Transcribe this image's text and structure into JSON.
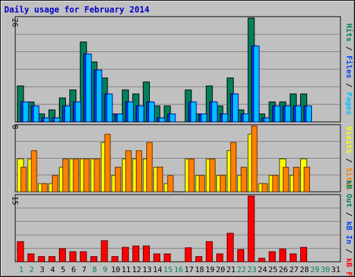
{
  "title": "Daily usage for February 2014",
  "colors": {
    "background": "#c0c0c0",
    "grid": "#808080",
    "hits": "#00805c",
    "files": "#0040ff",
    "pages": "#00c0ff",
    "visits": "#ffff00",
    "sites": "#ff8000",
    "kbin": "#0040ff",
    "kbout": "#00805c",
    "kbf": "#ff0000",
    "weekday": "#000000",
    "weekend": "#00805c",
    "title": "#0000c8"
  },
  "chart_data": [
    {
      "type": "bar",
      "panel": "hits-files-pages",
      "y_max_label": "26",
      "ylim": [
        0,
        26
      ],
      "side_labels": [
        {
          "text": "Pages",
          "color": "#00c0ff"
        },
        {
          "text": "Files",
          "color": "#0040ff"
        },
        {
          "text": "Hits",
          "color": "#00805c"
        }
      ],
      "categories": [
        "1",
        "2",
        "3",
        "4",
        "5",
        "6",
        "7",
        "8",
        "9",
        "10",
        "11",
        "12",
        "13",
        "14",
        "15",
        "16",
        "17",
        "18",
        "19",
        "20",
        "21",
        "22",
        "23",
        "24",
        "25",
        "26",
        "27",
        "28",
        "29",
        "30",
        "31"
      ],
      "series": [
        {
          "name": "Hits",
          "values": [
            9,
            5,
            2,
            3,
            6,
            8,
            20,
            15,
            11,
            2,
            8,
            7,
            10,
            4,
            4,
            0,
            8,
            2,
            9,
            4,
            11,
            3,
            26,
            2,
            5,
            5,
            7,
            7,
            0,
            0,
            0
          ]
        },
        {
          "name": "Files",
          "values": [
            5,
            4,
            1,
            1,
            4,
            5,
            17,
            13,
            7,
            2,
            5,
            4,
            5,
            1,
            2,
            0,
            5,
            2,
            5,
            2,
            7,
            2,
            19,
            1,
            4,
            4,
            4,
            4,
            0,
            0,
            0
          ]
        },
        {
          "name": "Pages",
          "values": [
            5,
            4,
            1,
            1,
            4,
            5,
            17,
            13,
            7,
            2,
            5,
            4,
            5,
            1,
            2,
            0,
            5,
            2,
            5,
            2,
            7,
            2,
            19,
            1,
            4,
            4,
            4,
            4,
            0,
            0,
            0
          ]
        }
      ]
    },
    {
      "type": "bar",
      "panel": "visits-sites",
      "y_max_label": "8",
      "ylim": [
        0,
        8
      ],
      "side_labels": [
        {
          "text": "Sites",
          "color": "#ff8000"
        },
        {
          "text": "Visits",
          "color": "#ffff00"
        }
      ],
      "categories": [
        "1",
        "2",
        "3",
        "4",
        "5",
        "6",
        "7",
        "8",
        "9",
        "10",
        "11",
        "12",
        "13",
        "14",
        "15",
        "16",
        "17",
        "18",
        "19",
        "20",
        "21",
        "22",
        "23",
        "24",
        "25",
        "26",
        "27",
        "28",
        "29",
        "30",
        "31"
      ],
      "series": [
        {
          "name": "Visits",
          "values": [
            4,
            4,
            1,
            1,
            3,
            4,
            4,
            4,
            6,
            2,
            4,
            4,
            4,
            3,
            1,
            0,
            4,
            2,
            4,
            2,
            5,
            2,
            7,
            1,
            2,
            4,
            2,
            4,
            0,
            0,
            0
          ]
        },
        {
          "name": "Sites",
          "values": [
            3,
            5,
            1,
            2,
            4,
            4,
            4,
            4,
            7,
            3,
            5,
            5,
            6,
            3,
            2,
            0,
            4,
            2,
            4,
            2,
            6,
            3,
            8,
            1,
            2,
            3,
            3,
            3,
            0,
            0,
            0
          ]
        }
      ]
    },
    {
      "type": "bar",
      "panel": "kbf-kbin-kbout",
      "y_max_label": "15",
      "ylim": [
        0,
        15
      ],
      "side_labels": [
        {
          "text": "kB F",
          "color": "#ff0000"
        },
        {
          "text": "kB In",
          "color": "#0040ff"
        },
        {
          "text": "kB Out",
          "color": "#00805c"
        }
      ],
      "categories": [
        "1",
        "2",
        "3",
        "4",
        "5",
        "6",
        "7",
        "8",
        "9",
        "10",
        "11",
        "12",
        "13",
        "14",
        "15",
        "16",
        "17",
        "18",
        "19",
        "20",
        "21",
        "22",
        "23",
        "24",
        "25",
        "26",
        "27",
        "28",
        "29",
        "30",
        "31"
      ],
      "series": [
        {
          "name": "kB F",
          "values": [
            4.6,
            1.8,
            1.2,
            1.2,
            3.0,
            2.3,
            2.3,
            1.2,
            4.8,
            1.2,
            3.3,
            3.6,
            3.6,
            1.8,
            1.8,
            0,
            3.2,
            1.2,
            4.6,
            1.8,
            6.5,
            2.8,
            15.0,
            0.8,
            2.3,
            2.9,
            1.8,
            3.3,
            0,
            0,
            0
          ]
        }
      ]
    }
  ],
  "x_axis": {
    "days": [
      {
        "label": "1",
        "weekend": true
      },
      {
        "label": "2",
        "weekend": true
      },
      {
        "label": "3",
        "weekend": false
      },
      {
        "label": "4",
        "weekend": false
      },
      {
        "label": "5",
        "weekend": false
      },
      {
        "label": "6",
        "weekend": false
      },
      {
        "label": "7",
        "weekend": false
      },
      {
        "label": "8",
        "weekend": true
      },
      {
        "label": "9",
        "weekend": true
      },
      {
        "label": "10",
        "weekend": false
      },
      {
        "label": "11",
        "weekend": false
      },
      {
        "label": "12",
        "weekend": false
      },
      {
        "label": "13",
        "weekend": false
      },
      {
        "label": "14",
        "weekend": false
      },
      {
        "label": "15",
        "weekend": true
      },
      {
        "label": "16",
        "weekend": true
      },
      {
        "label": "17",
        "weekend": false
      },
      {
        "label": "18",
        "weekend": false
      },
      {
        "label": "19",
        "weekend": false
      },
      {
        "label": "20",
        "weekend": false
      },
      {
        "label": "21",
        "weekend": false
      },
      {
        "label": "22",
        "weekend": true
      },
      {
        "label": "23",
        "weekend": true
      },
      {
        "label": "24",
        "weekend": false
      },
      {
        "label": "25",
        "weekend": false
      },
      {
        "label": "26",
        "weekend": false
      },
      {
        "label": "27",
        "weekend": false
      },
      {
        "label": "28",
        "weekend": false
      },
      {
        "label": "29",
        "weekend": true
      },
      {
        "label": "30",
        "weekend": true
      },
      {
        "label": "31",
        "weekend": false
      }
    ]
  }
}
